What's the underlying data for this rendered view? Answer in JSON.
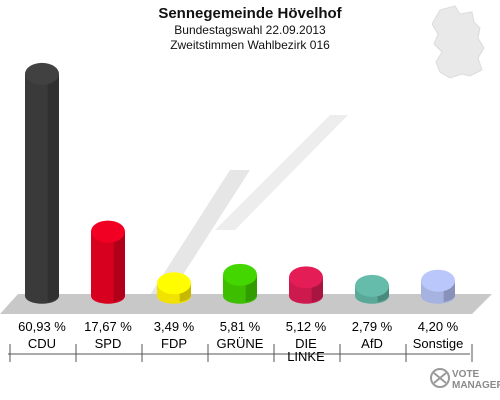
{
  "chart_data": {
    "type": "bar",
    "title": "Sennegemeinde Hövelhof",
    "subtitle_1": "Bundestagswahl 22.09.2013",
    "subtitle_2": "Zweitstimmen Wahlbezirk 016",
    "categories": [
      "CDU",
      "SPD",
      "FDP",
      "GRÜNE",
      "DIE LINKE",
      "AfD",
      "Sonstige"
    ],
    "category_lines": [
      [
        "CDU"
      ],
      [
        "SPD"
      ],
      [
        "FDP"
      ],
      [
        "GRÜNE"
      ],
      [
        "DIE",
        "LINKE"
      ],
      [
        "AfD"
      ],
      [
        "Sonstige"
      ]
    ],
    "values": [
      60.93,
      17.67,
      3.49,
      5.81,
      5.12,
      2.79,
      4.2
    ],
    "value_labels": [
      "60,93 %",
      "17,67 %",
      "3,49 %",
      "5,81 %",
      "5,12 %",
      "2,79 %",
      "4,20 %"
    ],
    "colors": [
      "#3a3a3a",
      "#d8001f",
      "#f2e200",
      "#3dbf00",
      "#cc1a4e",
      "#5aa898",
      "#a6b2e0"
    ],
    "ylim": [
      0,
      62
    ],
    "grid": false
  },
  "branding": {
    "logo_line_1": "VOTE",
    "logo_line_2": "MANAGER"
  }
}
